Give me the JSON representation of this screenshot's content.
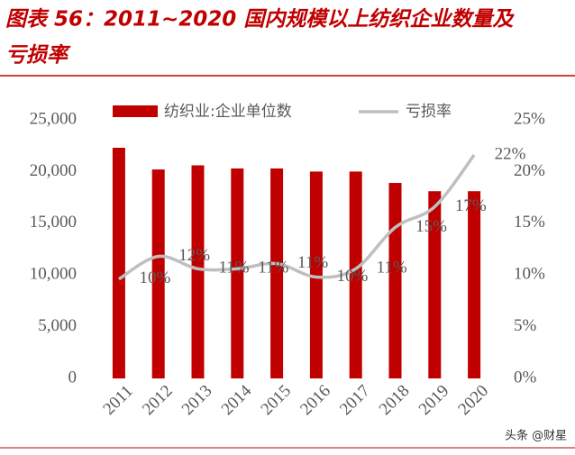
{
  "chart_data": {
    "type": "bar-line",
    "title": "图表 56：2011~2020 国内规模以上纺织企业数量及亏损率",
    "categories": [
      "2011",
      "2012",
      "2013",
      "2014",
      "2015",
      "2016",
      "2017",
      "2018",
      "2019",
      "2020"
    ],
    "series": [
      {
        "name": "纺织业:企业单位数",
        "color": "#c00000",
        "type": "bar",
        "values": [
          22300,
          20200,
          20600,
          20300,
          20300,
          20000,
          20000,
          18900,
          18100,
          18100
        ]
      },
      {
        "name": "亏损率",
        "color": "#bfbfbf",
        "type": "line",
        "axis": "y2",
        "values": [
          9.6,
          11.8,
          10.6,
          10.6,
          11.1,
          9.8,
          10.6,
          14.6,
          16.6,
          21.6
        ],
        "value_labels": [
          "10%",
          "12%",
          "11%",
          "11%",
          "11%",
          "10%",
          "11%",
          "15%",
          "17%",
          "22%"
        ]
      }
    ],
    "ylim": [
      0,
      25000
    ],
    "yticks": [
      0,
      {
        "value": 5000,
        "label": "5,000"
      },
      {
        "value": 10000,
        "label": "10,000"
      },
      {
        "value": 15000,
        "label": "15,000"
      },
      {
        "value": 20000,
        "label": "20,000"
      },
      {
        "value": 25000,
        "label": "25,000"
      }
    ],
    "y2lim": [
      0,
      25
    ],
    "y2ticks": [
      {
        "value": 0,
        "label": "0%"
      },
      {
        "value": 5,
        "label": "5%"
      },
      {
        "value": 10,
        "label": "10%"
      },
      {
        "value": 15,
        "label": "15%"
      },
      {
        "value": 20,
        "label": "20%"
      },
      {
        "value": 25,
        "label": "25%"
      }
    ],
    "legend": "top",
    "watermark": "头条 @财星"
  }
}
